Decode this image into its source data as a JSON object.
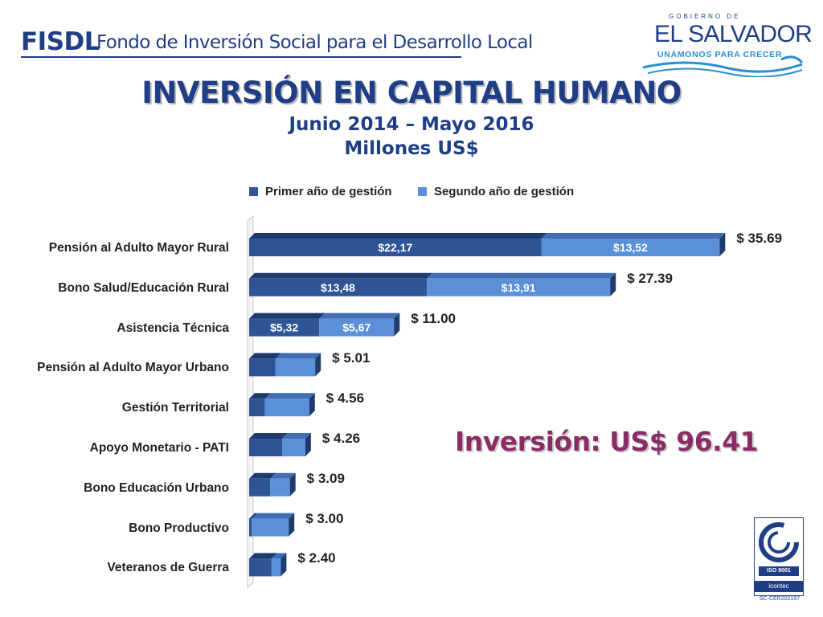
{
  "header": {
    "brand": "FISDL",
    "brand_full": "Fondo de Inversión Social para el Desarrollo Local",
    "gov_top": "GOBIERNO DE",
    "gov_name": "EL SALVADOR",
    "gov_slogan": "UNÁMONOS PARA CRECER"
  },
  "title": "INVERSIÓN EN CAPITAL HUMANO",
  "subtitle_1": "Junio 2014 – Mayo 2016",
  "subtitle_2": "Millones US$",
  "investment_total_label": "Inversión: US$ 96.41",
  "certification": {
    "iso": "ISO 9001",
    "issuer": "icontec",
    "code": "SC-CER202197"
  },
  "colors": {
    "brand_blue": "#1f3e86",
    "series_1": "#2f5597",
    "series_2": "#5b8fd8",
    "total_text": "#8a2d66"
  },
  "chart_data": {
    "type": "bar",
    "orientation": "horizontal",
    "stacked": true,
    "categories": [
      "Pensión al Adulto Mayor Rural",
      "Bono Salud/Educación Rural",
      "Asistencia Técnica",
      "Pensión al Adulto Mayor Urbano",
      "Gestión Territorial",
      "Apoyo Monetario - PATI",
      "Bono Educación Urbano",
      "Bono Productivo",
      "Veteranos de Guerra"
    ],
    "series": [
      {
        "name": "Primer año de gestión",
        "values": [
          22.17,
          13.48,
          5.32,
          2.0,
          1.2,
          2.5,
          1.6,
          0.2,
          1.7
        ],
        "data_labels": [
          "$22,17",
          "$13,48",
          "$5,32",
          "",
          "",
          "",
          "",
          "",
          ""
        ]
      },
      {
        "name": "Segundo año de gestión",
        "values": [
          13.52,
          13.91,
          5.67,
          3.01,
          3.36,
          1.76,
          1.49,
          2.8,
          0.7
        ],
        "data_labels": [
          "$13,52",
          "$13,91",
          "$5,67",
          "",
          "",
          "",
          "",
          "",
          ""
        ]
      }
    ],
    "totals": [
      "$ 35.69",
      "$ 27.39",
      "$ 11.00",
      "$ 5.01",
      "$ 4.56",
      "$ 4.26",
      "$ 3.09",
      "$ 3.00",
      "$ 2.40"
    ],
    "xlim": [
      0,
      36
    ],
    "legend_position": "top"
  }
}
